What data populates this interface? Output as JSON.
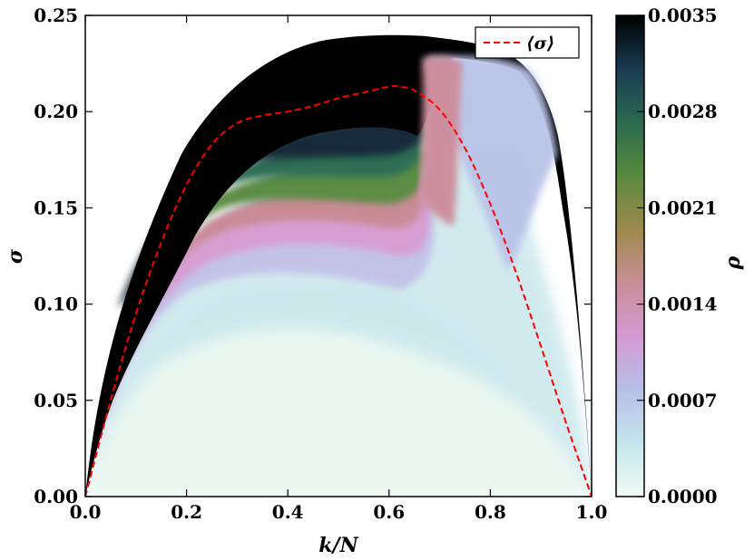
{
  "chart_data": {
    "type": "heatmap",
    "title": "",
    "xlabel": "k/N",
    "ylabel": "σ",
    "colorbar_label": "ρ",
    "xlim": [
      0.0,
      1.0
    ],
    "ylim": [
      0.0,
      0.25
    ],
    "x_ticks": [
      "0.0",
      "0.2",
      "0.4",
      "0.6",
      "0.8",
      "1.0"
    ],
    "y_ticks": [
      "0.00",
      "0.05",
      "0.10",
      "0.15",
      "0.20",
      "0.25"
    ],
    "colorbar_ticks": [
      "0.0000",
      "0.0007",
      "0.0014",
      "0.0021",
      "0.0028",
      "0.0035"
    ],
    "colorbar_range": [
      0.0,
      0.0035
    ],
    "colormap": [
      "#f0fbf4",
      "#c4e6ec",
      "#b8bfe8",
      "#d39ad3",
      "#c98e98",
      "#9c8a4c",
      "#5a8a40",
      "#2b6a4e",
      "#1a3a52",
      "#000000"
    ],
    "legend_position": "top-right",
    "series": [
      {
        "name": "⟨σ⟩",
        "color": "#ff0000",
        "style": "dashed",
        "x": [
          0.0,
          0.05,
          0.1,
          0.15,
          0.2,
          0.25,
          0.3,
          0.35,
          0.4,
          0.45,
          0.5,
          0.55,
          0.6,
          0.62,
          0.65,
          0.7,
          0.75,
          0.8,
          0.85,
          0.9,
          0.95,
          1.0
        ],
        "y": [
          0.0,
          0.05,
          0.095,
          0.132,
          0.162,
          0.183,
          0.194,
          0.198,
          0.2,
          0.203,
          0.207,
          0.21,
          0.213,
          0.213,
          0.211,
          0.201,
          0.181,
          0.152,
          0.117,
          0.078,
          0.038,
          0.0
        ]
      }
    ]
  }
}
